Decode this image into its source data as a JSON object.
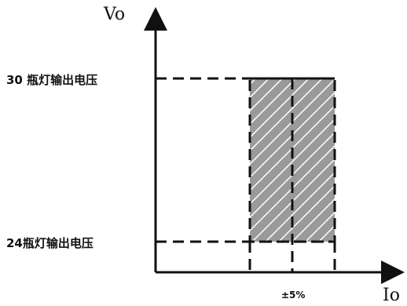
{
  "axes": {
    "y_title": "Vo",
    "x_title": "Io"
  },
  "levels": {
    "upper_label": "30 瓶灯输出电压",
    "lower_label": "24瓶灯输出电压"
  },
  "tolerance_label": "±5%",
  "colors": {
    "line": "#111111",
    "region_fill": "#9a9a9a",
    "hatch": "#ffffff"
  }
}
